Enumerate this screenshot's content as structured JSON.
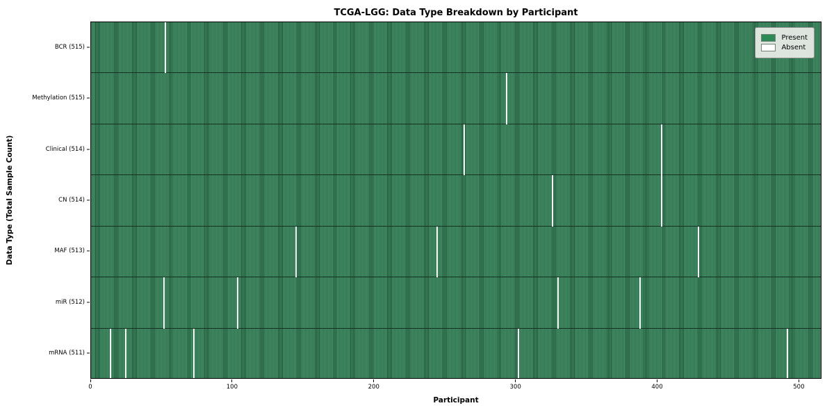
{
  "chart_data": {
    "type": "heatmap",
    "title": "TCGA-LGG: Data Type Breakdown by Participant",
    "xlabel": "Participant",
    "ylabel": "Data Type (Total Sample Count)",
    "x_ticks": [
      0,
      100,
      200,
      300,
      400,
      500
    ],
    "xlim": [
      0,
      516
    ],
    "n_participants": 516,
    "grid": false,
    "legend": {
      "position": "upper right",
      "entries": [
        {
          "label": "Present",
          "color": "#2e8b57"
        },
        {
          "label": "Absent",
          "color": "#ffffff"
        }
      ]
    },
    "colors": {
      "present": "#2e8b57",
      "present_stripe_light": "#459168",
      "present_stripe_dark": "#1c4f33",
      "absent": "#f7f9f7"
    },
    "rows": [
      {
        "data_type": "BCR",
        "label": "BCR (515)",
        "present_count": 515,
        "absent_participants": [
          52
        ]
      },
      {
        "data_type": "Methylation",
        "label": "Methylation (515)",
        "present_count": 515,
        "absent_participants": [
          293
        ]
      },
      {
        "data_type": "Clinical",
        "label": "Clinical (514)",
        "present_count": 514,
        "absent_participants": [
          263,
          402
        ]
      },
      {
        "data_type": "CN",
        "label": "CN (514)",
        "present_count": 514,
        "absent_participants": [
          325,
          402
        ]
      },
      {
        "data_type": "MAF",
        "label": "MAF (513)",
        "present_count": 513,
        "absent_participants": [
          144,
          244,
          428
        ]
      },
      {
        "data_type": "miR",
        "label": "miR (512)",
        "present_count": 512,
        "absent_participants": [
          51,
          103,
          329,
          387
        ]
      },
      {
        "data_type": "mRNA",
        "label": "mRNA (511)",
        "present_count": 511,
        "absent_participants": [
          13,
          24,
          72,
          301,
          491
        ]
      }
    ]
  }
}
